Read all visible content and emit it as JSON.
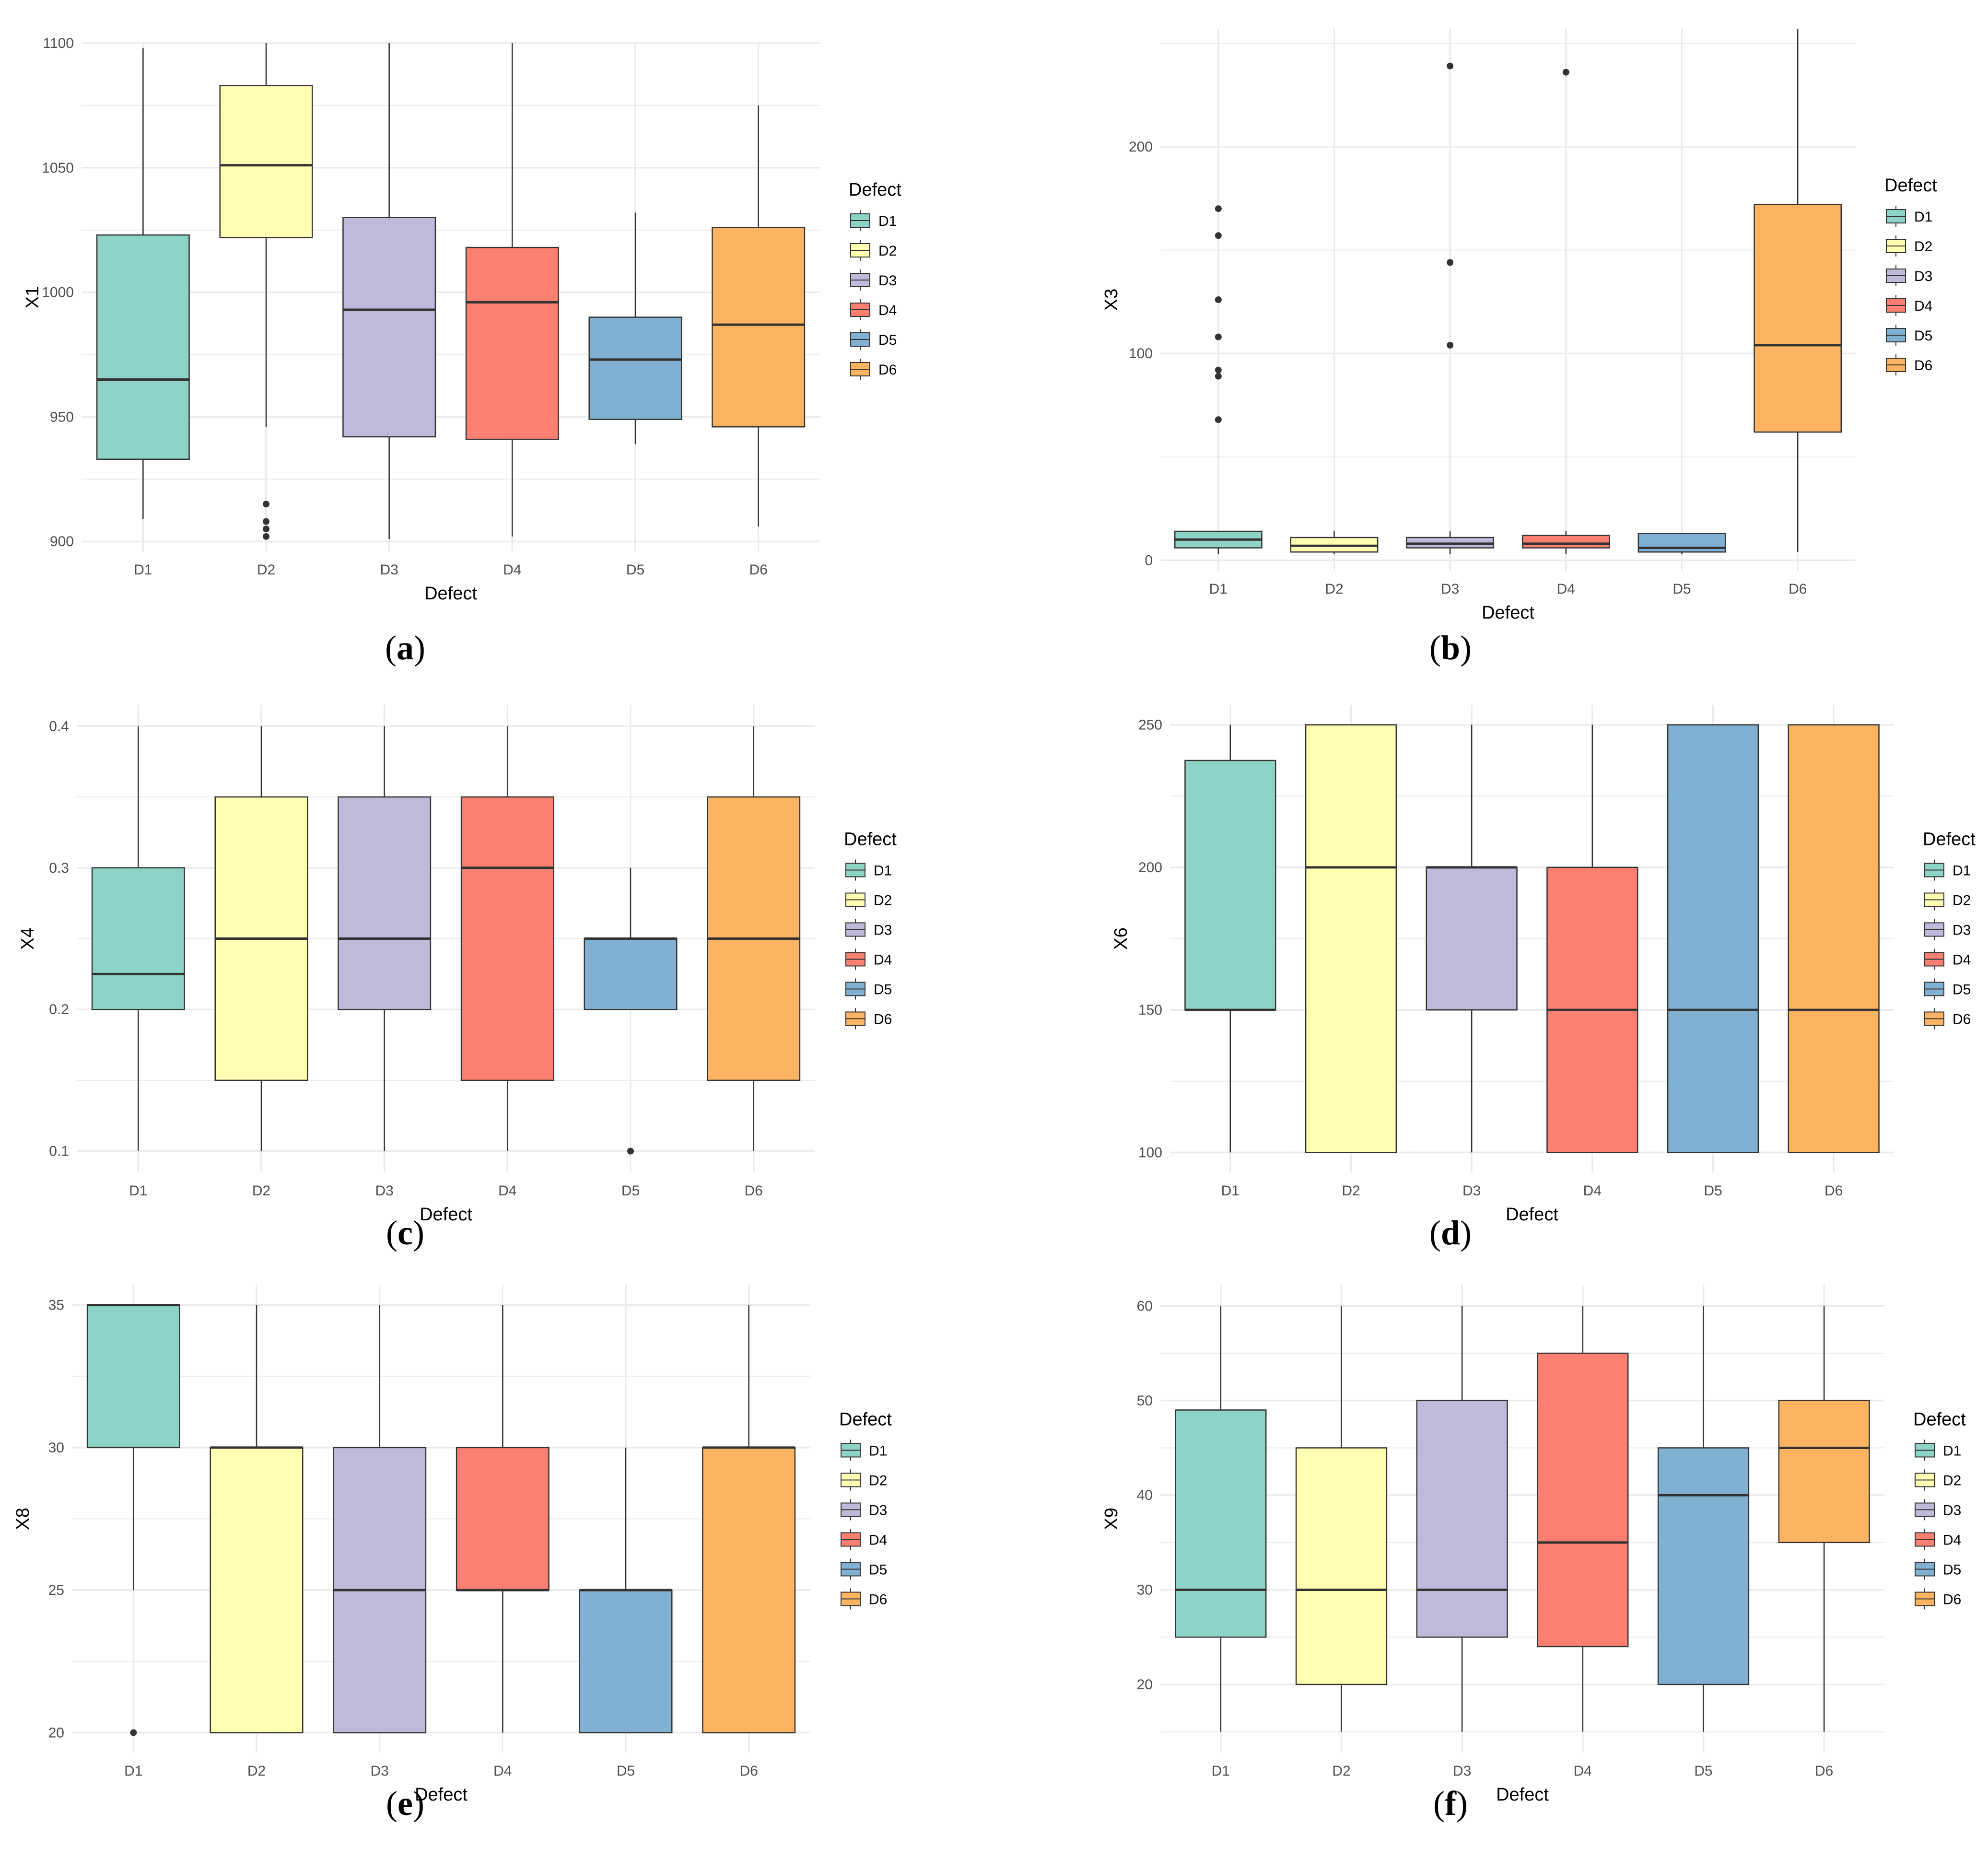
{
  "colors": {
    "D1": "#8DD3C7",
    "D2": "#FFFFB3",
    "D3": "#BEBADA",
    "D4": "#FB8072",
    "D5": "#80B1D3",
    "D6": "#FDB462",
    "grid": "#ebebeb",
    "stroke": "#333333"
  },
  "captions": [
    {
      "open": "(",
      "letter": "a",
      "close": ")"
    },
    {
      "open": "(",
      "letter": "b",
      "close": ")"
    },
    {
      "open": "(",
      "letter": "c",
      "close": ")"
    },
    {
      "open": "(",
      "letter": "d",
      "close": ")"
    },
    {
      "open": "(",
      "letter": "e",
      "close": ")"
    },
    {
      "open": "(",
      "letter": "f",
      "close": ")"
    }
  ],
  "chart_data": [
    {
      "type": "boxplot",
      "panel": "a",
      "xlabel": "Defect",
      "ylabel": "X1",
      "legend_title": "Defect",
      "legend_position": "right",
      "grid": true,
      "categories": [
        "D1",
        "D2",
        "D3",
        "D4",
        "D5",
        "D6"
      ],
      "ylim": [
        896,
        1100
      ],
      "yticks": [
        900,
        950,
        1000,
        1050,
        1100
      ],
      "boxes": [
        {
          "name": "D1",
          "min": 909,
          "q1": 933,
          "median": 965,
          "q3": 1023,
          "max": 1098,
          "outliers": []
        },
        {
          "name": "D2",
          "min": 946,
          "q1": 1022,
          "median": 1051,
          "q3": 1083,
          "max": 1100,
          "outliers": [
            915,
            908,
            905,
            902
          ]
        },
        {
          "name": "D3",
          "min": 901,
          "q1": 942,
          "median": 993,
          "q3": 1030,
          "max": 1100,
          "outliers": []
        },
        {
          "name": "D4",
          "min": 902,
          "q1": 941,
          "median": 996,
          "q3": 1018,
          "max": 1100,
          "outliers": []
        },
        {
          "name": "D5",
          "min": 939,
          "q1": 949,
          "median": 973,
          "q3": 990,
          "max": 1032,
          "outliers": []
        },
        {
          "name": "D6",
          "min": 906,
          "q1": 946,
          "median": 987,
          "q3": 1026,
          "max": 1075,
          "outliers": []
        }
      ]
    },
    {
      "type": "boxplot",
      "panel": "b",
      "xlabel": "Defect",
      "ylabel": "X3",
      "legend_title": "Defect",
      "legend_position": "right",
      "grid": true,
      "categories": [
        "D1",
        "D2",
        "D3",
        "D4",
        "D5",
        "D6"
      ],
      "ylim": [
        -5,
        257
      ],
      "yticks": [
        0,
        100,
        200
      ],
      "boxes": [
        {
          "name": "D1",
          "min": 3,
          "q1": 6,
          "median": 10,
          "q3": 14,
          "max": 14,
          "outliers": [
            170,
            157,
            126,
            108,
            92,
            89,
            68
          ]
        },
        {
          "name": "D2",
          "min": 3,
          "q1": 4,
          "median": 7,
          "q3": 11,
          "max": 14,
          "outliers": []
        },
        {
          "name": "D3",
          "min": 3,
          "q1": 6,
          "median": 8,
          "q3": 11,
          "max": 14,
          "outliers": [
            239,
            144,
            104
          ]
        },
        {
          "name": "D4",
          "min": 3,
          "q1": 6,
          "median": 8,
          "q3": 12,
          "max": 14,
          "outliers": [
            236
          ]
        },
        {
          "name": "D5",
          "min": 3,
          "q1": 4,
          "median": 6,
          "q3": 13,
          "max": 13,
          "outliers": []
        },
        {
          "name": "D6",
          "min": 4,
          "q1": 62,
          "median": 104,
          "q3": 172,
          "max": 257,
          "outliers": []
        }
      ]
    },
    {
      "type": "boxplot",
      "panel": "c",
      "xlabel": "Defect",
      "ylabel": "X4",
      "legend_title": "Defect",
      "legend_position": "right",
      "grid": true,
      "categories": [
        "D1",
        "D2",
        "D3",
        "D4",
        "D5",
        "D6"
      ],
      "ylim": [
        0.085,
        0.415
      ],
      "yticks": [
        0.1,
        0.2,
        0.3,
        0.4
      ],
      "boxes": [
        {
          "name": "D1",
          "min": 0.1,
          "q1": 0.2,
          "median": 0.225,
          "q3": 0.3,
          "max": 0.4,
          "outliers": []
        },
        {
          "name": "D2",
          "min": 0.1,
          "q1": 0.15,
          "median": 0.25,
          "q3": 0.35,
          "max": 0.4,
          "outliers": []
        },
        {
          "name": "D3",
          "min": 0.1,
          "q1": 0.2,
          "median": 0.25,
          "q3": 0.35,
          "max": 0.4,
          "outliers": []
        },
        {
          "name": "D4",
          "min": 0.1,
          "q1": 0.15,
          "median": 0.3,
          "q3": 0.35,
          "max": 0.4,
          "outliers": []
        },
        {
          "name": "D5",
          "min": 0.2,
          "q1": 0.2,
          "median": 0.25,
          "q3": 0.25,
          "max": 0.3,
          "outliers": [
            0.1
          ]
        },
        {
          "name": "D6",
          "min": 0.1,
          "q1": 0.15,
          "median": 0.25,
          "q3": 0.35,
          "max": 0.4,
          "outliers": []
        }
      ]
    },
    {
      "type": "boxplot",
      "panel": "d",
      "xlabel": "Defect",
      "ylabel": "X6",
      "legend_title": "Defect",
      "legend_position": "right",
      "grid": true,
      "categories": [
        "D1",
        "D2",
        "D3",
        "D4",
        "D5",
        "D6"
      ],
      "ylim": [
        93,
        257
      ],
      "yticks": [
        100,
        150,
        200,
        250
      ],
      "boxes": [
        {
          "name": "D1",
          "min": 100,
          "q1": 150,
          "median": 150,
          "q3": 237.5,
          "max": 250,
          "outliers": []
        },
        {
          "name": "D2",
          "min": 100,
          "q1": 100,
          "median": 200,
          "q3": 250,
          "max": 250,
          "outliers": []
        },
        {
          "name": "D3",
          "min": 100,
          "q1": 150,
          "median": 200,
          "q3": 200,
          "max": 250,
          "outliers": []
        },
        {
          "name": "D4",
          "min": 100,
          "q1": 100,
          "median": 150,
          "q3": 200,
          "max": 250,
          "outliers": []
        },
        {
          "name": "D5",
          "min": 100,
          "q1": 100,
          "median": 150,
          "q3": 250,
          "max": 250,
          "outliers": []
        },
        {
          "name": "D6",
          "min": 100,
          "q1": 100,
          "median": 150,
          "q3": 250,
          "max": 250,
          "outliers": []
        }
      ]
    },
    {
      "type": "boxplot",
      "panel": "e",
      "xlabel": "Defect",
      "ylabel": "X8",
      "legend_title": "Defect",
      "legend_position": "right",
      "grid": true,
      "categories": [
        "D1",
        "D2",
        "D3",
        "D4",
        "D5",
        "D6"
      ],
      "ylim": [
        19.3,
        35.7
      ],
      "yticks": [
        20,
        25,
        30,
        35
      ],
      "boxes": [
        {
          "name": "D1",
          "min": 25,
          "q1": 30,
          "median": 35,
          "q3": 35,
          "max": 35,
          "outliers": [
            20
          ]
        },
        {
          "name": "D2",
          "min": 20,
          "q1": 20,
          "median": 30,
          "q3": 30,
          "max": 35,
          "outliers": []
        },
        {
          "name": "D3",
          "min": 20,
          "q1": 20,
          "median": 25,
          "q3": 30,
          "max": 35,
          "outliers": []
        },
        {
          "name": "D4",
          "min": 20,
          "q1": 25,
          "median": 25,
          "q3": 30,
          "max": 35,
          "outliers": []
        },
        {
          "name": "D5",
          "min": 20,
          "q1": 20,
          "median": 25,
          "q3": 25,
          "max": 30,
          "outliers": []
        },
        {
          "name": "D6",
          "min": 20,
          "q1": 20,
          "median": 30,
          "q3": 30,
          "max": 35,
          "outliers": []
        }
      ]
    },
    {
      "type": "boxplot",
      "panel": "f",
      "xlabel": "Defect",
      "ylabel": "X9",
      "legend_title": "Defect",
      "legend_position": "right",
      "grid": true,
      "categories": [
        "D1",
        "D2",
        "D3",
        "D4",
        "D5",
        "D6"
      ],
      "ylim": [
        12.8,
        62.2
      ],
      "yticks": [
        20,
        30,
        40,
        50,
        60
      ],
      "boxes": [
        {
          "name": "D1",
          "min": 15,
          "q1": 25,
          "median": 30,
          "q3": 49,
          "max": 60,
          "outliers": []
        },
        {
          "name": "D2",
          "min": 15,
          "q1": 20,
          "median": 30,
          "q3": 45,
          "max": 60,
          "outliers": []
        },
        {
          "name": "D3",
          "min": 15,
          "q1": 25,
          "median": 30,
          "q3": 50,
          "max": 60,
          "outliers": []
        },
        {
          "name": "D4",
          "min": 15,
          "q1": 24,
          "median": 35,
          "q3": 55,
          "max": 60,
          "outliers": []
        },
        {
          "name": "D5",
          "min": 15,
          "q1": 20,
          "median": 40,
          "q3": 45,
          "max": 60,
          "outliers": []
        },
        {
          "name": "D6",
          "min": 15,
          "q1": 35,
          "median": 45,
          "q3": 50,
          "max": 60,
          "outliers": []
        }
      ]
    }
  ]
}
